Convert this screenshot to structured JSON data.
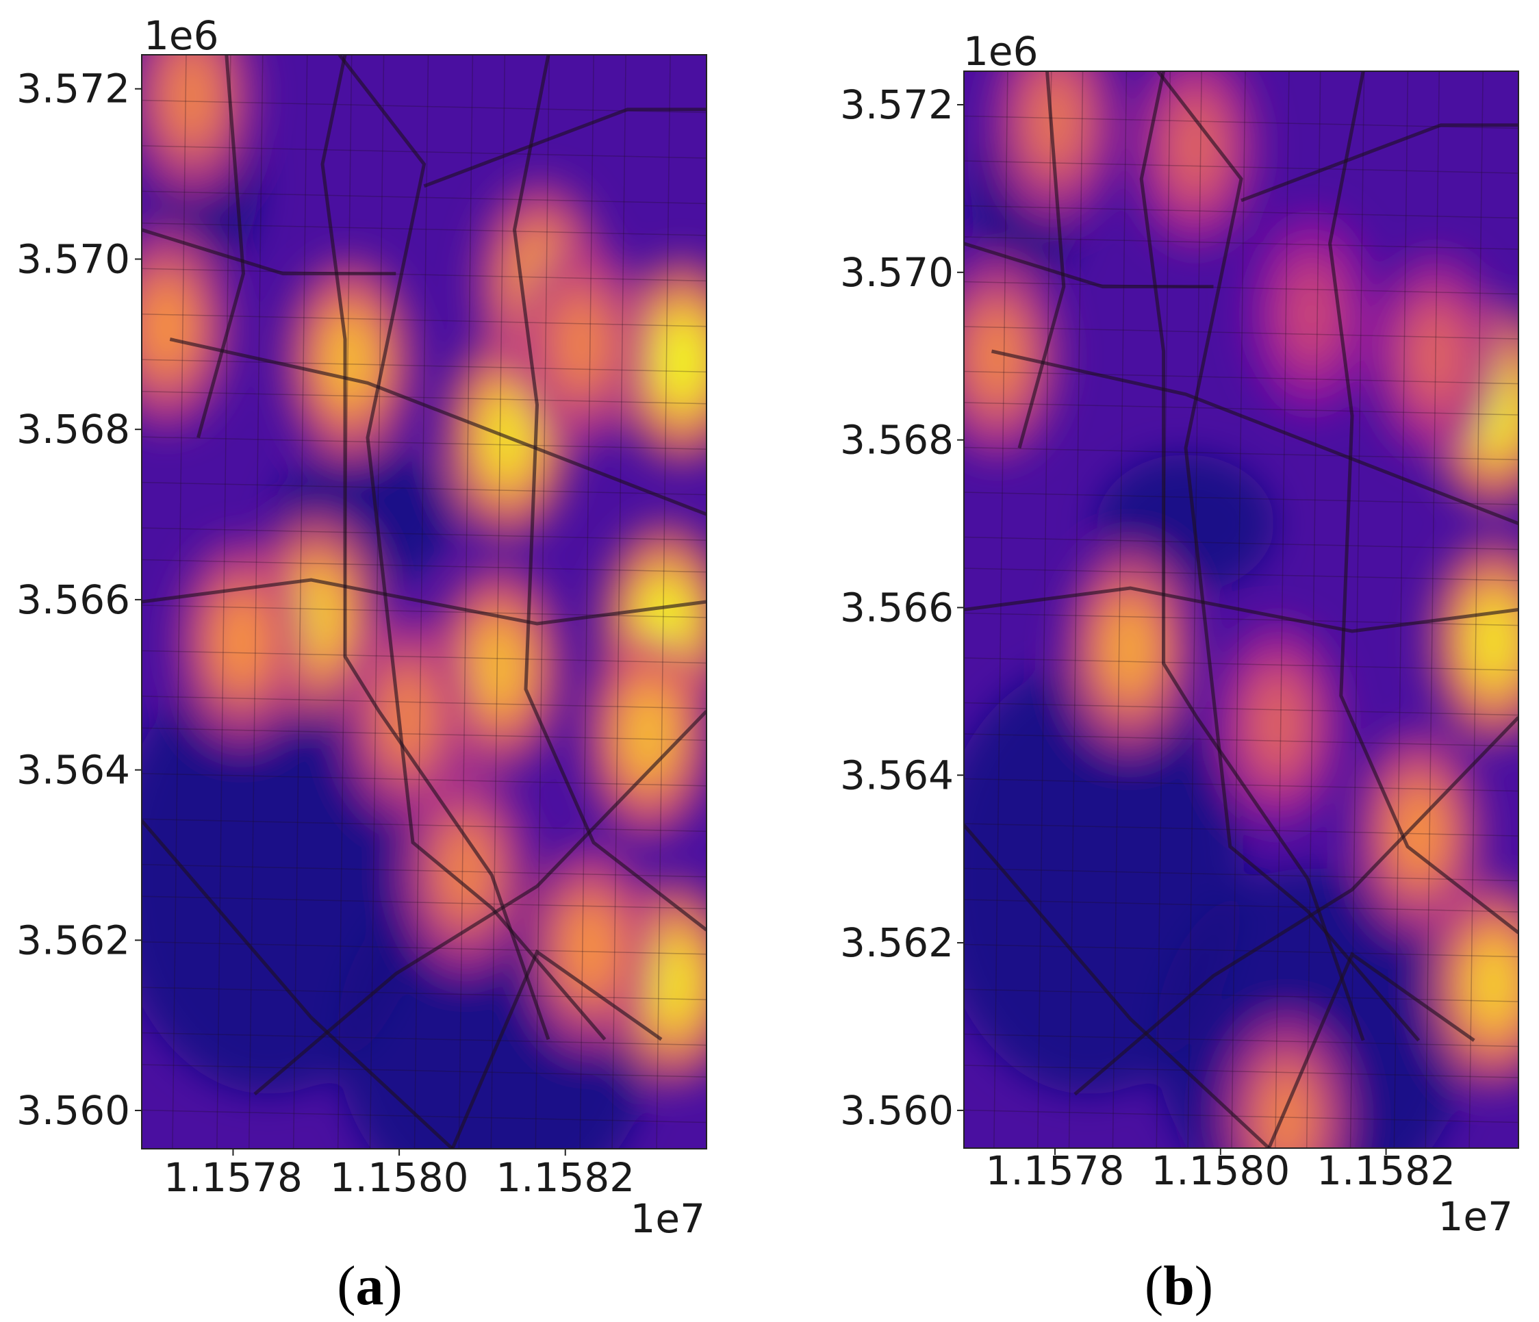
{
  "chart_data": [
    {
      "type": "heatmap",
      "panel_label": "(a)",
      "panel_letter": "a",
      "colormap": "plasma",
      "background": "street map",
      "x_ticks": [
        "1.1578",
        "1.1580",
        "1.1582"
      ],
      "x_tick_values": [
        1.1578,
        1.158,
        1.1582
      ],
      "x_offset": "1e7",
      "y_ticks": [
        "3.572",
        "3.570",
        "3.568",
        "3.566",
        "3.564",
        "3.562",
        "3.560"
      ],
      "y_tick_values": [
        3.572,
        3.57,
        3.568,
        3.566,
        3.564,
        3.562,
        3.56
      ],
      "y_offset": "1e6",
      "xlim": [
        1.15769,
        1.15837
      ],
      "ylim": [
        3.55955,
        3.5724
      ],
      "hotspots": [
        {
          "x": 1.15834,
          "y": 3.5688,
          "intensity": 1.0
        },
        {
          "x": 1.15832,
          "y": 3.5657,
          "intensity": 1.0
        },
        {
          "x": 1.15813,
          "y": 3.5679,
          "intensity": 0.95
        },
        {
          "x": 1.15833,
          "y": 3.5615,
          "intensity": 0.95
        },
        {
          "x": 1.1579,
          "y": 3.5658,
          "intensity": 0.9
        },
        {
          "x": 1.15794,
          "y": 3.5688,
          "intensity": 0.85
        },
        {
          "x": 1.15812,
          "y": 3.5652,
          "intensity": 0.85
        },
        {
          "x": 1.15817,
          "y": 3.5697,
          "intensity": 0.8
        },
        {
          "x": 1.1583,
          "y": 3.5644,
          "intensity": 0.85
        },
        {
          "x": 1.15772,
          "y": 3.5692,
          "intensity": 0.75
        },
        {
          "x": 1.15775,
          "y": 3.5719,
          "intensity": 0.7
        },
        {
          "x": 1.15781,
          "y": 3.5655,
          "intensity": 0.75
        },
        {
          "x": 1.15808,
          "y": 3.5628,
          "intensity": 0.7
        },
        {
          "x": 1.15823,
          "y": 3.5619,
          "intensity": 0.75
        },
        {
          "x": 1.15801,
          "y": 3.5646,
          "intensity": 0.7
        },
        {
          "x": 1.15822,
          "y": 3.569,
          "intensity": 0.7
        }
      ]
    },
    {
      "type": "heatmap",
      "panel_label": "(b)",
      "panel_letter": "b",
      "colormap": "plasma",
      "background": "street map",
      "x_ticks": [
        "1.1578",
        "1.1580",
        "1.1582"
      ],
      "x_tick_values": [
        1.1578,
        1.158,
        1.1582
      ],
      "x_offset": "1e7",
      "y_ticks": [
        "3.572",
        "3.570",
        "3.568",
        "3.566",
        "3.564",
        "3.562",
        "3.560"
      ],
      "y_tick_values": [
        3.572,
        3.57,
        3.568,
        3.566,
        3.564,
        3.562,
        3.56
      ],
      "y_offset": "1e6",
      "xlim": [
        1.15769,
        1.15836
      ],
      "ylim": [
        3.55955,
        3.5724
      ],
      "hotspots": [
        {
          "x": 1.15833,
          "y": 3.5684,
          "intensity": 1.0
        },
        {
          "x": 1.15833,
          "y": 3.5656,
          "intensity": 0.95
        },
        {
          "x": 1.15833,
          "y": 3.5615,
          "intensity": 0.9
        },
        {
          "x": 1.15789,
          "y": 3.5655,
          "intensity": 0.8
        },
        {
          "x": 1.15773,
          "y": 3.569,
          "intensity": 0.7
        },
        {
          "x": 1.1578,
          "y": 3.5718,
          "intensity": 0.65
        },
        {
          "x": 1.15797,
          "y": 3.5715,
          "intensity": 0.6
        },
        {
          "x": 1.15824,
          "y": 3.5633,
          "intensity": 0.75
        },
        {
          "x": 1.15807,
          "y": 3.5646,
          "intensity": 0.6
        },
        {
          "x": 1.15826,
          "y": 3.569,
          "intensity": 0.6
        },
        {
          "x": 1.15811,
          "y": 3.5695,
          "intensity": 0.5
        },
        {
          "x": 1.15808,
          "y": 3.5599,
          "intensity": 0.7
        }
      ]
    }
  ]
}
